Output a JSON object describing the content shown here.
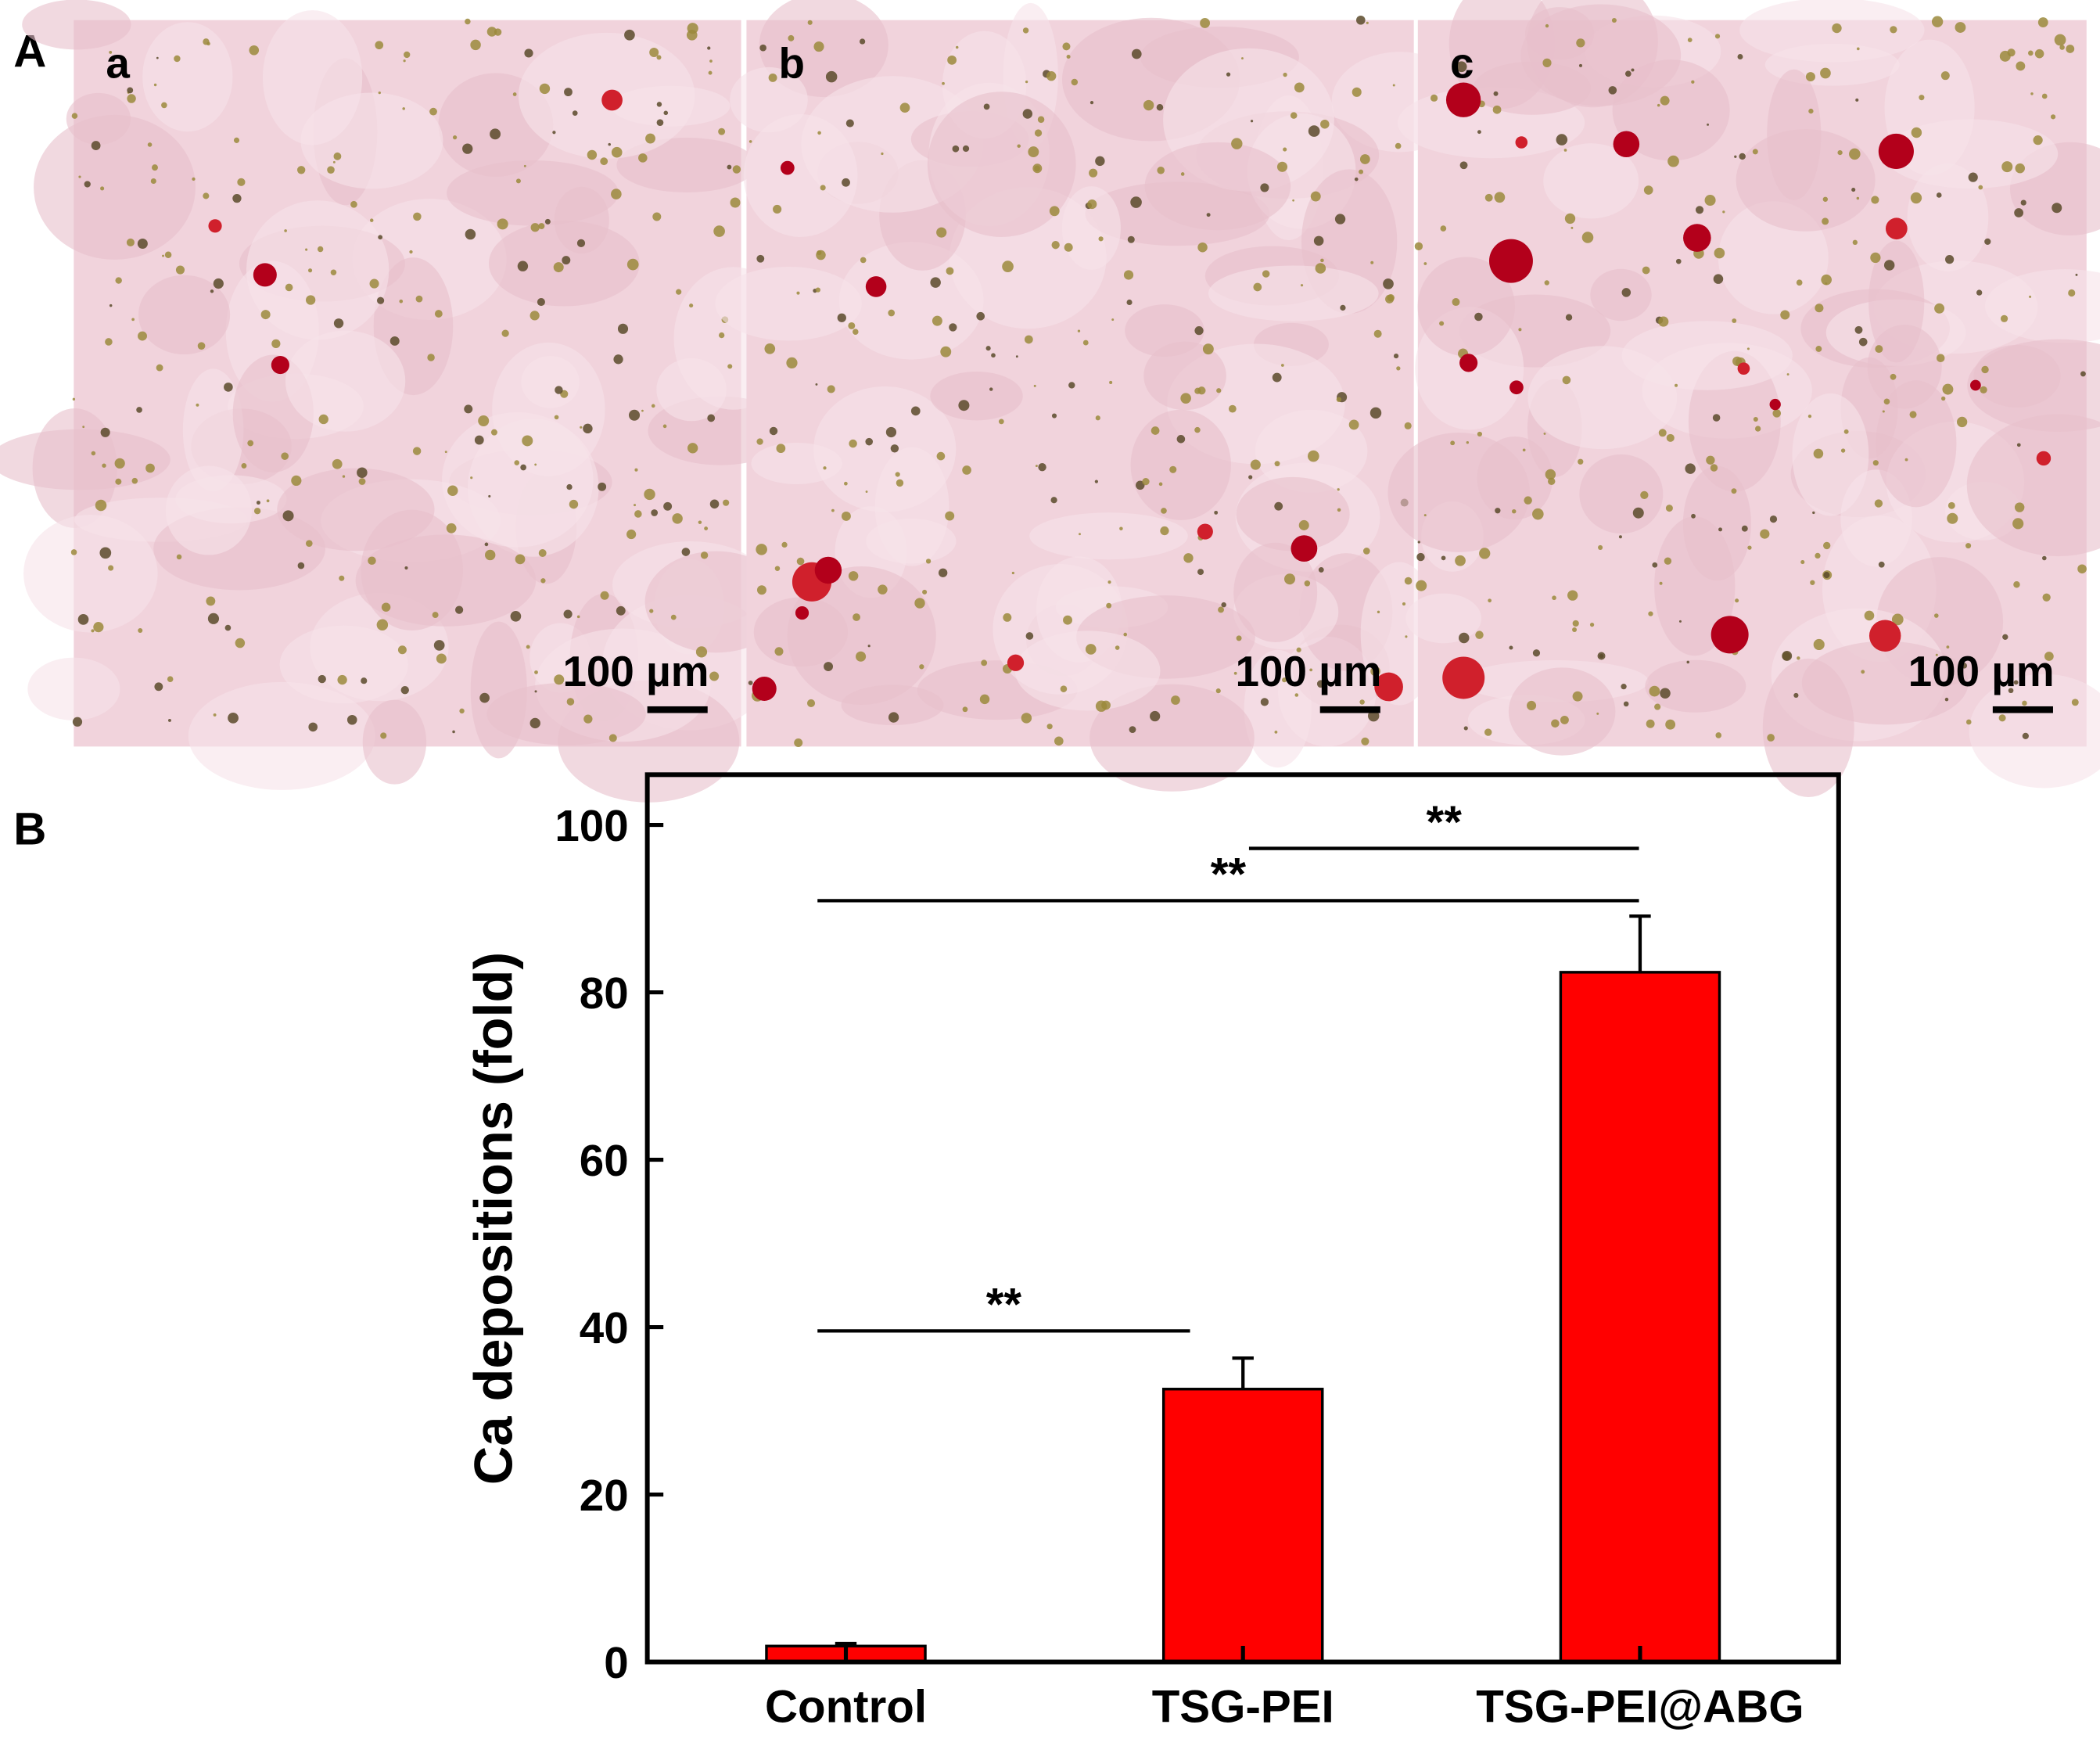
{
  "panel_a": {
    "label": "A",
    "images": [
      {
        "label": "a",
        "scale_bar": "100 µm"
      },
      {
        "label": "b",
        "scale_bar": "100 µm"
      },
      {
        "label": "c",
        "scale_bar": "100 µm"
      }
    ]
  },
  "chart_data": {
    "type": "bar",
    "panel_label": "B",
    "y_label": "Ca depositions (fold)",
    "categories": [
      "Control",
      "TSG-PEI",
      "TSG-PEI@ABG"
    ],
    "values": [
      1.9,
      32.6,
      82.4
    ],
    "errors": [
      0.3,
      3.7,
      6.7
    ],
    "color": "#ff0000",
    "ylim": [
      0,
      106
    ],
    "yticks": [
      0,
      20,
      40,
      60,
      80,
      100
    ],
    "grid": false,
    "annotations": [
      {
        "text": "**"
      },
      {
        "text": "**"
      },
      {
        "text": "**"
      }
    ]
  }
}
